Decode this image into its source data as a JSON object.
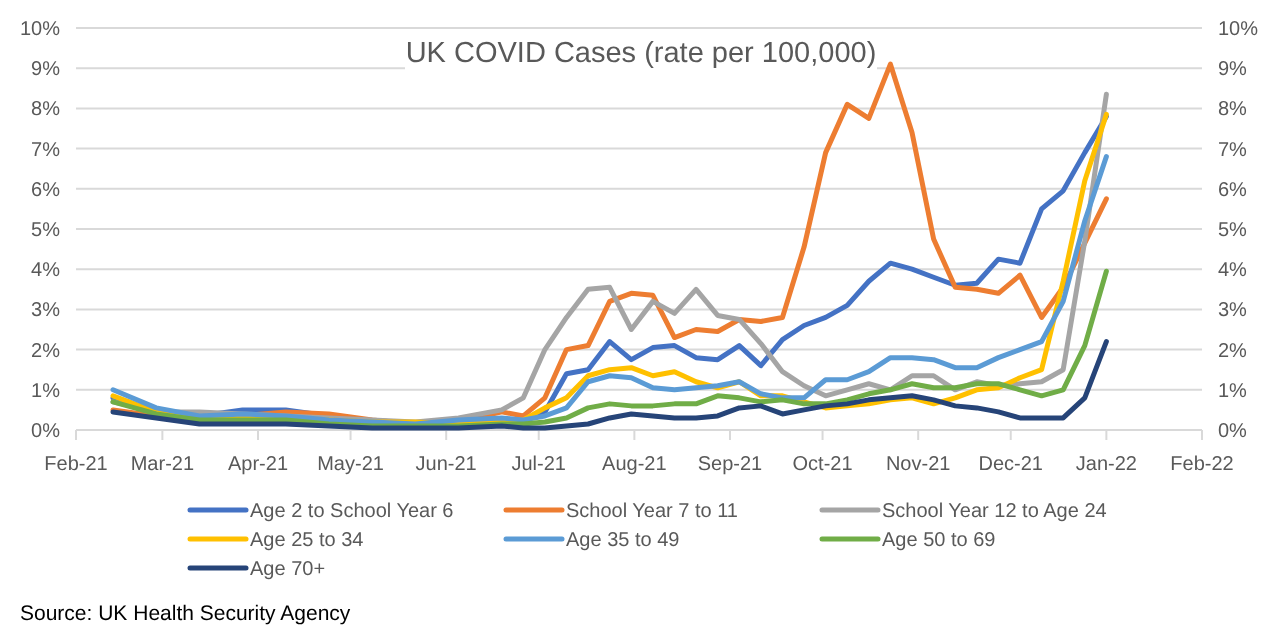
{
  "chart_data": {
    "type": "line",
    "title": "UK COVID Cases (rate per 100,000)",
    "annotations": [
      "Source: UK Health Security Agency"
    ],
    "x": [
      "2021-02-13",
      "2021-02-27",
      "2021-03-13",
      "2021-03-27",
      "2021-04-10",
      "2021-04-24",
      "2021-05-08",
      "2021-05-22",
      "2021-06-05",
      "2021-06-19",
      "2021-06-26",
      "2021-07-03",
      "2021-07-10",
      "2021-07-17",
      "2021-07-24",
      "2021-07-31",
      "2021-08-07",
      "2021-08-14",
      "2021-08-21",
      "2021-08-28",
      "2021-09-04",
      "2021-09-11",
      "2021-09-18",
      "2021-09-25",
      "2021-10-02",
      "2021-10-09",
      "2021-10-16",
      "2021-10-23",
      "2021-10-30",
      "2021-11-06",
      "2021-11-13",
      "2021-11-20",
      "2021-11-27",
      "2021-12-04",
      "2021-12-11",
      "2021-12-18",
      "2021-12-25",
      "2022-01-01"
    ],
    "series": [
      {
        "name": "Age 2 to School Year 6",
        "color": "#4472c4",
        "values": [
          0.8,
          0.4,
          0.35,
          0.5,
          0.5,
          0.35,
          0.2,
          0.15,
          0.15,
          0.2,
          0.25,
          0.45,
          1.4,
          1.5,
          2.2,
          1.75,
          2.05,
          2.1,
          1.8,
          1.75,
          2.1,
          1.6,
          2.25,
          2.6,
          2.8,
          3.1,
          3.7,
          4.15,
          4.0,
          3.8,
          3.6,
          3.65,
          4.25,
          4.15,
          5.5,
          5.95,
          6.9,
          7.8
        ]
      },
      {
        "name": "School Year 7 to 11",
        "color": "#ed7d31",
        "values": [
          0.5,
          0.35,
          0.3,
          0.35,
          0.45,
          0.4,
          0.25,
          0.15,
          0.2,
          0.45,
          0.35,
          0.8,
          2.0,
          2.1,
          3.2,
          3.4,
          3.35,
          2.3,
          2.5,
          2.45,
          2.75,
          2.7,
          2.8,
          4.55,
          6.9,
          8.1,
          7.75,
          9.1,
          7.4,
          4.75,
          3.55,
          3.5,
          3.4,
          3.85,
          2.8,
          3.55,
          4.65,
          5.75
        ]
      },
      {
        "name": "School Year 12 to Age 24",
        "color": "#a5a5a5",
        "values": [
          0.7,
          0.45,
          0.45,
          0.4,
          0.35,
          0.3,
          0.25,
          0.2,
          0.3,
          0.5,
          0.8,
          2.0,
          2.8,
          3.5,
          3.55,
          2.5,
          3.2,
          2.9,
          3.5,
          2.85,
          2.75,
          2.15,
          1.45,
          1.1,
          0.85,
          1.0,
          1.15,
          1.0,
          1.35,
          1.35,
          1.0,
          1.2,
          1.1,
          1.15,
          1.2,
          1.5,
          4.7,
          8.35
        ]
      },
      {
        "name": "Age 25 to 34",
        "color": "#ffc000",
        "values": [
          0.85,
          0.45,
          0.3,
          0.3,
          0.3,
          0.25,
          0.2,
          0.2,
          0.15,
          0.25,
          0.25,
          0.55,
          0.8,
          1.35,
          1.5,
          1.55,
          1.35,
          1.45,
          1.2,
          1.05,
          1.2,
          0.85,
          0.85,
          0.7,
          0.55,
          0.6,
          0.65,
          0.75,
          0.8,
          0.65,
          0.8,
          1.0,
          1.05,
          1.3,
          1.5,
          3.7,
          6.2,
          7.85
        ]
      },
      {
        "name": "Age 35 to 49",
        "color": "#5b9bd5",
        "values": [
          1.0,
          0.55,
          0.35,
          0.4,
          0.35,
          0.25,
          0.2,
          0.15,
          0.25,
          0.3,
          0.25,
          0.35,
          0.55,
          1.2,
          1.35,
          1.3,
          1.05,
          1.0,
          1.05,
          1.1,
          1.2,
          0.9,
          0.8,
          0.8,
          1.25,
          1.25,
          1.45,
          1.8,
          1.8,
          1.75,
          1.55,
          1.55,
          1.8,
          2.0,
          2.2,
          3.2,
          5.2,
          6.8
        ]
      },
      {
        "name": "Age 50 to 69",
        "color": "#70ad47",
        "values": [
          0.7,
          0.4,
          0.25,
          0.25,
          0.25,
          0.15,
          0.1,
          0.1,
          0.1,
          0.15,
          0.15,
          0.2,
          0.3,
          0.55,
          0.65,
          0.6,
          0.6,
          0.65,
          0.65,
          0.85,
          0.8,
          0.7,
          0.75,
          0.65,
          0.65,
          0.75,
          0.9,
          1.0,
          1.15,
          1.05,
          1.05,
          1.15,
          1.15,
          1.0,
          0.85,
          1.0,
          2.1,
          3.95
        ]
      },
      {
        "name": "Age 70+",
        "color": "#264478",
        "values": [
          0.45,
          0.3,
          0.15,
          0.15,
          0.15,
          0.1,
          0.05,
          0.05,
          0.05,
          0.1,
          0.05,
          0.05,
          0.1,
          0.15,
          0.3,
          0.4,
          0.35,
          0.3,
          0.3,
          0.35,
          0.55,
          0.6,
          0.4,
          0.5,
          0.6,
          0.65,
          0.75,
          0.8,
          0.85,
          0.75,
          0.6,
          0.55,
          0.45,
          0.3,
          0.3,
          0.3,
          0.8,
          2.2
        ]
      }
    ],
    "xlim": [
      "2021-02-01",
      "2022-02-01"
    ],
    "xticks": [
      {
        "value": "2021-02-01",
        "label": "Feb-21"
      },
      {
        "value": "2021-03-01",
        "label": "Mar-21"
      },
      {
        "value": "2021-04-01",
        "label": "Apr-21"
      },
      {
        "value": "2021-05-01",
        "label": "May-21"
      },
      {
        "value": "2021-06-01",
        "label": "Jun-21"
      },
      {
        "value": "2021-07-01",
        "label": "Jul-21"
      },
      {
        "value": "2021-08-01",
        "label": "Aug-21"
      },
      {
        "value": "2021-09-01",
        "label": "Sep-21"
      },
      {
        "value": "2021-10-01",
        "label": "Oct-21"
      },
      {
        "value": "2021-11-01",
        "label": "Nov-21"
      },
      {
        "value": "2021-12-01",
        "label": "Dec-21"
      },
      {
        "value": "2022-01-01",
        "label": "Jan-22"
      },
      {
        "value": "2022-02-01",
        "label": "Feb-22"
      }
    ],
    "ylim": [
      0,
      10
    ],
    "yticks": [
      {
        "value": 0,
        "label": "0%"
      },
      {
        "value": 1,
        "label": "1%"
      },
      {
        "value": 2,
        "label": "2%"
      },
      {
        "value": 3,
        "label": "3%"
      },
      {
        "value": 4,
        "label": "4%"
      },
      {
        "value": 5,
        "label": "5%"
      },
      {
        "value": 6,
        "label": "6%"
      },
      {
        "value": 7,
        "label": "7%"
      },
      {
        "value": 8,
        "label": "8%"
      },
      {
        "value": 9,
        "label": "9%"
      },
      {
        "value": 10,
        "label": "10%"
      }
    ],
    "y2lim": [
      0,
      10
    ],
    "y2ticks": [
      {
        "value": 0,
        "label": "0%"
      },
      {
        "value": 1,
        "label": "1%"
      },
      {
        "value": 2,
        "label": "2%"
      },
      {
        "value": 3,
        "label": "3%"
      },
      {
        "value": 4,
        "label": "4%"
      },
      {
        "value": 5,
        "label": "5%"
      },
      {
        "value": 6,
        "label": "6%"
      },
      {
        "value": 7,
        "label": "7%"
      },
      {
        "value": 8,
        "label": "8%"
      },
      {
        "value": 9,
        "label": "9%"
      },
      {
        "value": 10,
        "label": "10%"
      }
    ],
    "grid": "y",
    "legend": "bottom",
    "marker": "none",
    "line_style": "solid"
  }
}
